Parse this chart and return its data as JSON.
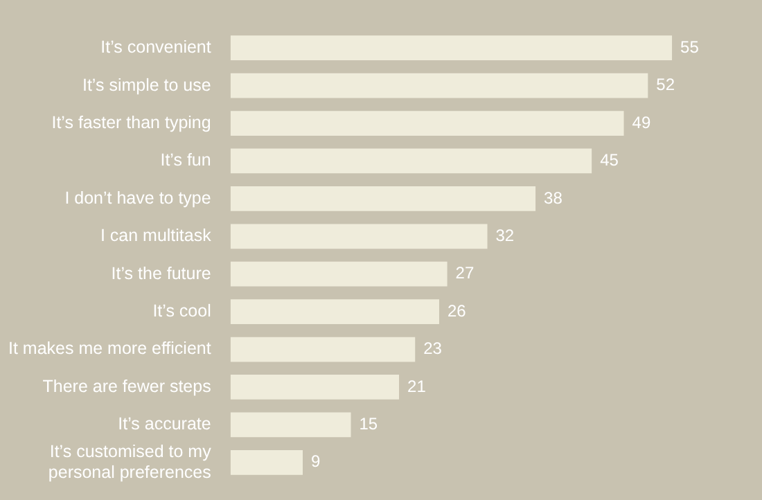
{
  "chart_data": {
    "type": "bar",
    "orientation": "horizontal",
    "categories": [
      "It’s convenient",
      "It’s simple to use",
      "It’s faster than typing",
      "It’s fun",
      "I don’t have to type",
      "I can multitask",
      "It’s the future",
      "It’s cool",
      "It makes me more efficient",
      "There are fewer steps",
      "It’s accurate",
      "It’s customised to my personal preferences"
    ],
    "values": [
      55,
      52,
      49,
      45,
      38,
      32,
      27,
      26,
      23,
      21,
      15,
      9
    ],
    "color": "#efecdb",
    "data_labels": true
  }
}
